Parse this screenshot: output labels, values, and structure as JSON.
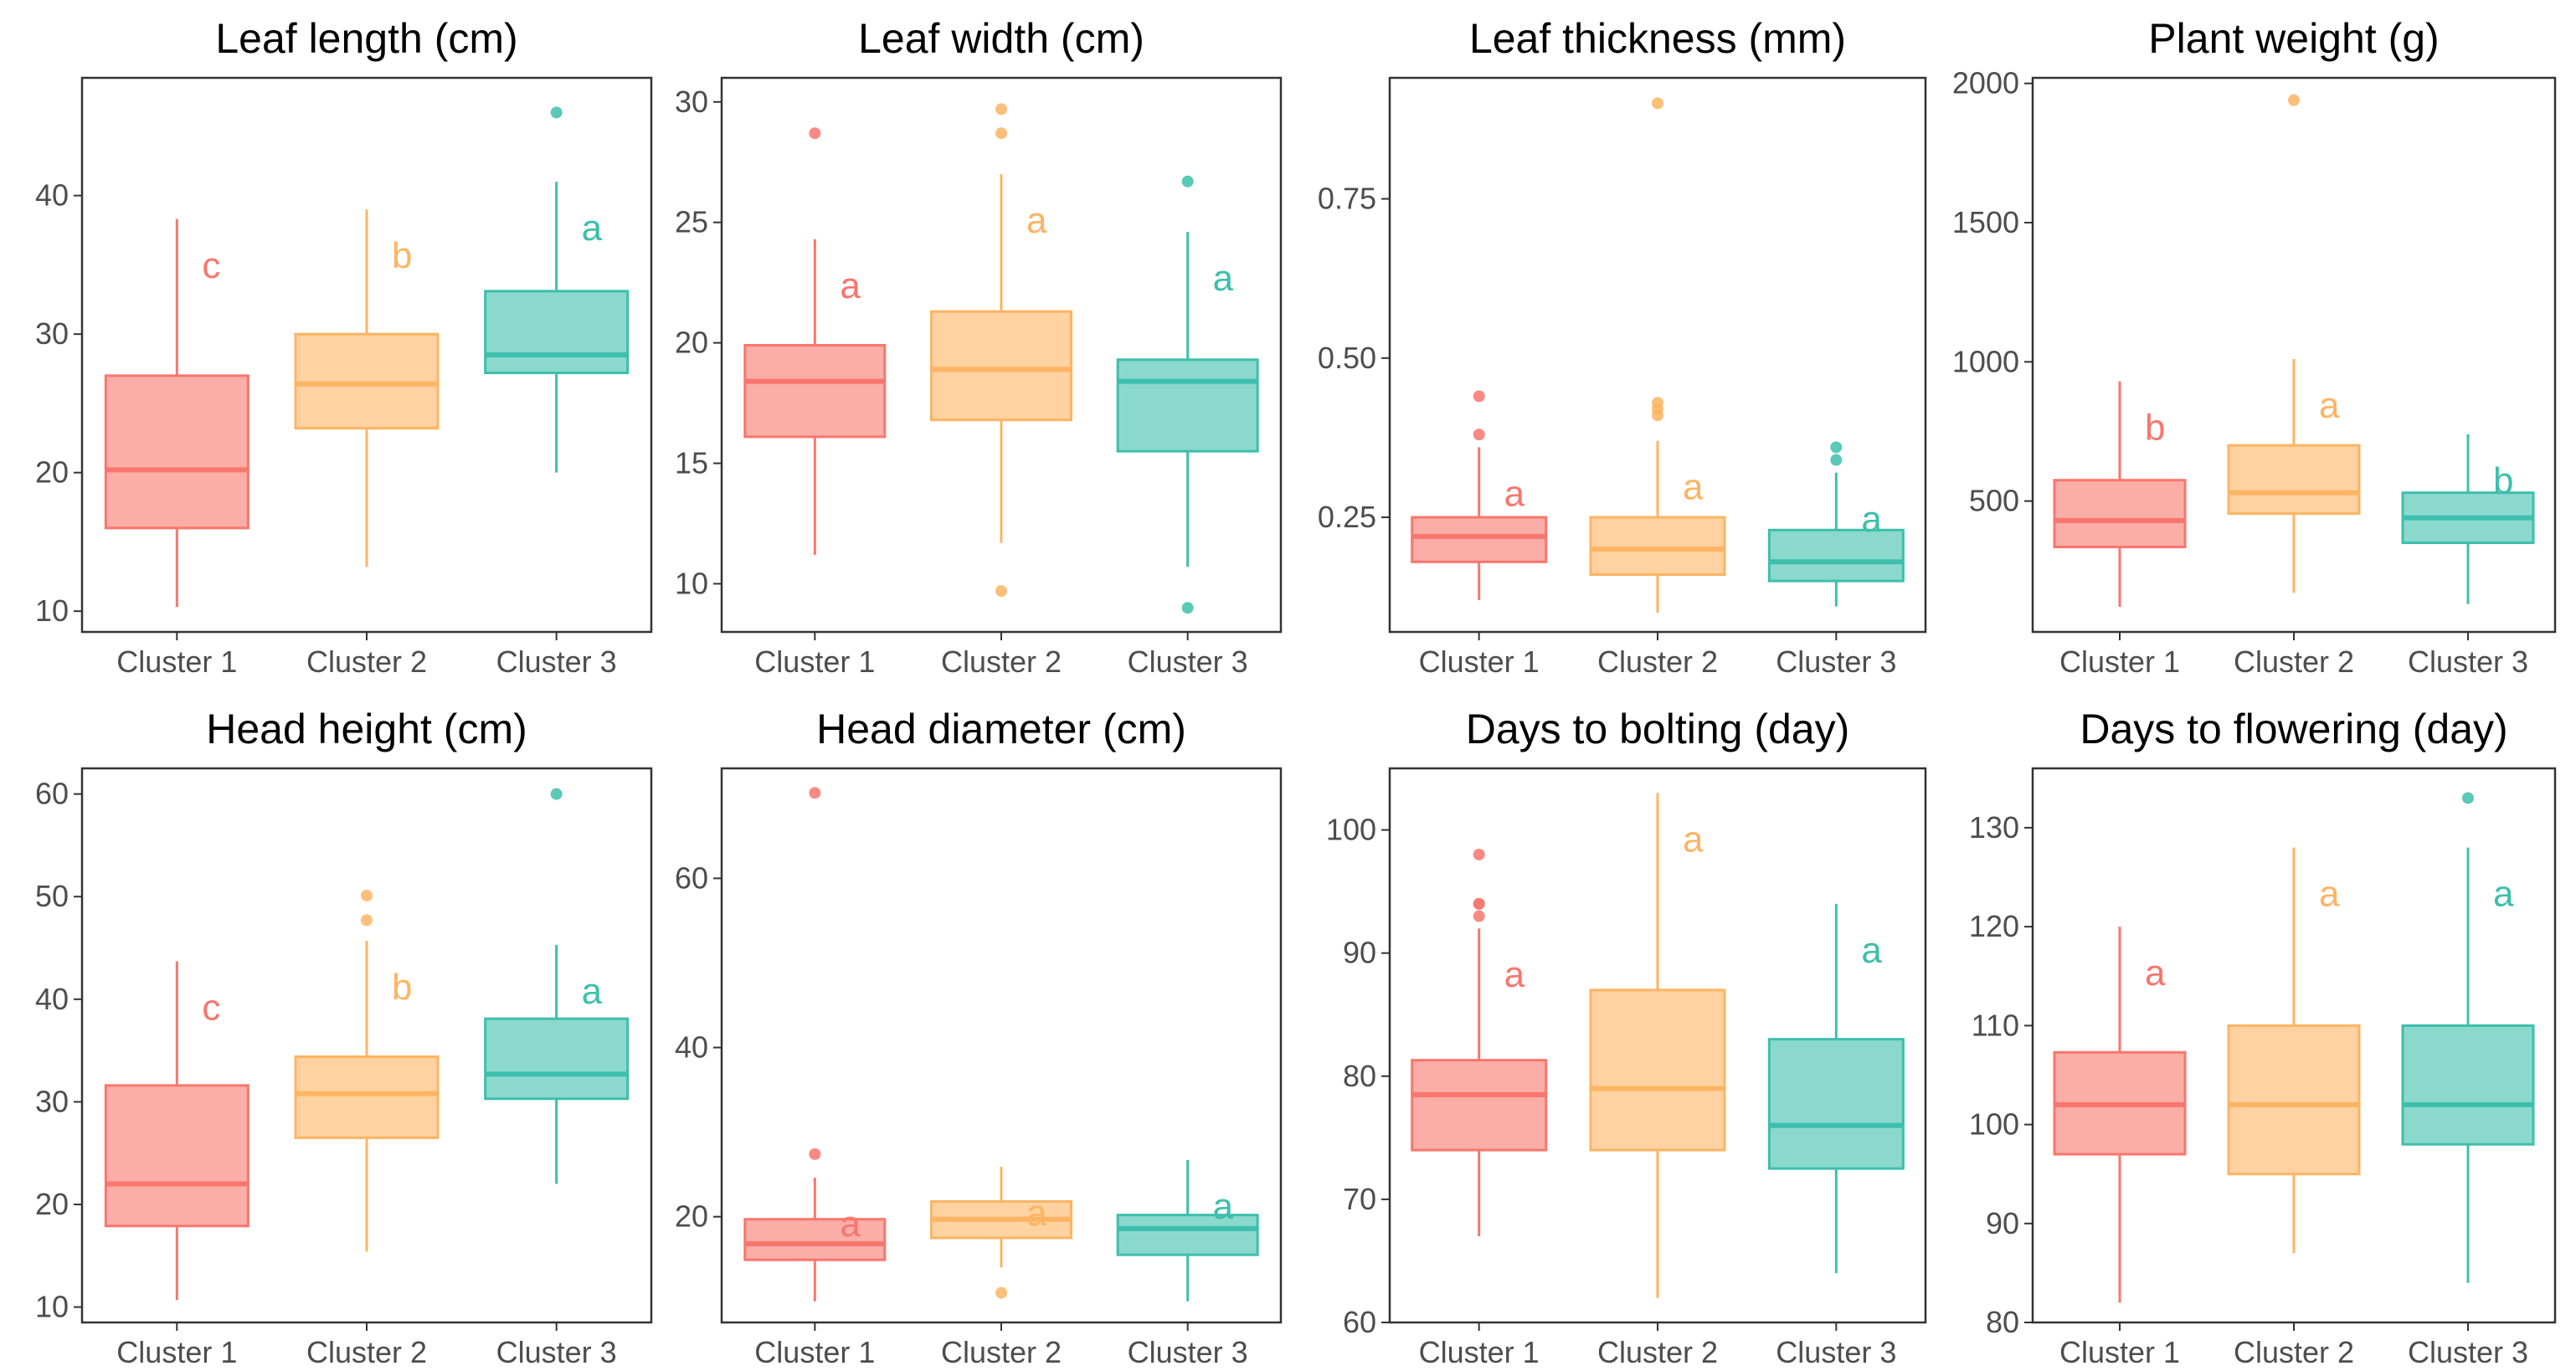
{
  "colors": {
    "cluster1": "#F8766D",
    "cluster2": "#FDB462",
    "cluster3": "#3DBFAC"
  },
  "chart_data": [
    {
      "type": "box",
      "title": "Leaf length (cm)",
      "categories": [
        "Cluster 1",
        "Cluster 2",
        "Cluster 3"
      ],
      "ylim": [
        8.5,
        48.5
      ],
      "yticks": [
        10,
        20,
        30,
        40
      ],
      "tick_labels": [
        "10",
        "20",
        "30",
        "40"
      ],
      "boxes": [
        {
          "category": "Cluster 1",
          "min": 10.3,
          "q1": 16.0,
          "median": 20.2,
          "q3": 27.0,
          "max": 38.3,
          "outliers": [],
          "letter": "c"
        },
        {
          "category": "Cluster 2",
          "min": 13.2,
          "q1": 23.2,
          "median": 26.4,
          "q3": 30.0,
          "max": 39.0,
          "outliers": [],
          "letter": "b"
        },
        {
          "category": "Cluster 3",
          "min": 20.0,
          "q1": 27.2,
          "median": 28.5,
          "q3": 33.1,
          "max": 41.0,
          "outliers": [
            46.0
          ],
          "letter": "a"
        }
      ]
    },
    {
      "type": "box",
      "title": "Leaf width (cm)",
      "categories": [
        "Cluster 1",
        "Cluster 2",
        "Cluster 3"
      ],
      "ylim": [
        8.0,
        31.0
      ],
      "yticks": [
        10,
        15,
        20,
        25,
        30
      ],
      "tick_labels": [
        "10",
        "15",
        "20",
        "25",
        "30"
      ],
      "boxes": [
        {
          "category": "Cluster 1",
          "min": 11.2,
          "q1": 16.1,
          "median": 18.4,
          "q3": 19.9,
          "max": 24.3,
          "outliers": [
            28.7
          ],
          "letter": "a"
        },
        {
          "category": "Cluster 2",
          "min": 11.7,
          "q1": 16.8,
          "median": 18.9,
          "q3": 21.3,
          "max": 27.0,
          "outliers": [
            9.7,
            28.7,
            29.7
          ],
          "letter": "a"
        },
        {
          "category": "Cluster 3",
          "min": 10.7,
          "q1": 15.5,
          "median": 18.4,
          "q3": 19.3,
          "max": 24.6,
          "outliers": [
            9.0,
            26.7
          ],
          "letter": "a"
        }
      ]
    },
    {
      "type": "box",
      "title": "Leaf thickness (mm)",
      "categories": [
        "Cluster 1",
        "Cluster 2",
        "Cluster 3"
      ],
      "ylim": [
        0.07,
        0.94
      ],
      "yticks": [
        0.25,
        0.5,
        0.75
      ],
      "tick_labels": [
        "0.25",
        "0.50",
        "0.75"
      ],
      "boxes": [
        {
          "category": "Cluster 1",
          "min": 0.12,
          "q1": 0.18,
          "median": 0.22,
          "q3": 0.25,
          "max": 0.36,
          "outliers": [
            0.38,
            0.44
          ],
          "letter": "a"
        },
        {
          "category": "Cluster 2",
          "min": 0.1,
          "q1": 0.16,
          "median": 0.2,
          "q3": 0.25,
          "max": 0.37,
          "outliers": [
            0.41,
            0.42,
            0.43,
            0.9
          ],
          "letter": "a"
        },
        {
          "category": "Cluster 3",
          "min": 0.11,
          "q1": 0.15,
          "median": 0.18,
          "q3": 0.23,
          "max": 0.32,
          "outliers": [
            0.34,
            0.36
          ],
          "letter": "a"
        }
      ]
    },
    {
      "type": "box",
      "title": "Plant weight (g)",
      "categories": [
        "Cluster 1",
        "Cluster 2",
        "Cluster 3"
      ],
      "ylim": [
        30,
        2020
      ],
      "yticks": [
        500,
        1000,
        1500,
        2000
      ],
      "tick_labels": [
        "500",
        "1000",
        "1500",
        "2000"
      ],
      "boxes": [
        {
          "category": "Cluster 1",
          "min": 120,
          "q1": 335,
          "median": 430,
          "q3": 575,
          "max": 930,
          "outliers": [],
          "letter": "b"
        },
        {
          "category": "Cluster 2",
          "min": 170,
          "q1": 455,
          "median": 530,
          "q3": 700,
          "max": 1010,
          "outliers": [
            1940
          ],
          "letter": "a"
        },
        {
          "category": "Cluster 3",
          "min": 130,
          "q1": 350,
          "median": 440,
          "q3": 530,
          "max": 740,
          "outliers": [],
          "letter": "b"
        }
      ]
    },
    {
      "type": "box",
      "title": "Head height (cm)",
      "categories": [
        "Cluster 1",
        "Cluster 2",
        "Cluster 3"
      ],
      "ylim": [
        8.5,
        62.5
      ],
      "yticks": [
        10,
        20,
        30,
        40,
        50,
        60
      ],
      "tick_labels": [
        "10",
        "20",
        "30",
        "40",
        "50",
        "60"
      ],
      "boxes": [
        {
          "category": "Cluster 1",
          "min": 10.7,
          "q1": 17.9,
          "median": 22.0,
          "q3": 31.6,
          "max": 43.7,
          "outliers": [],
          "letter": "c"
        },
        {
          "category": "Cluster 2",
          "min": 15.4,
          "q1": 26.5,
          "median": 30.8,
          "q3": 34.4,
          "max": 45.7,
          "outliers": [
            47.7,
            50.1
          ],
          "letter": "b"
        },
        {
          "category": "Cluster 3",
          "min": 22.0,
          "q1": 30.3,
          "median": 32.7,
          "q3": 38.1,
          "max": 45.3,
          "outliers": [
            60.0
          ],
          "letter": "a"
        }
      ]
    },
    {
      "type": "box",
      "title": "Head diameter (cm)",
      "categories": [
        "Cluster 1",
        "Cluster 2",
        "Cluster 3"
      ],
      "ylim": [
        7.5,
        73.0
      ],
      "yticks": [
        20,
        40,
        60
      ],
      "tick_labels": [
        "20",
        "40",
        "60"
      ],
      "boxes": [
        {
          "category": "Cluster 1",
          "min": 10.0,
          "q1": 14.9,
          "median": 16.8,
          "q3": 19.7,
          "max": 24.6,
          "outliers": [
            27.4,
            70.1
          ],
          "letter": "a"
        },
        {
          "category": "Cluster 2",
          "min": 14.0,
          "q1": 17.5,
          "median": 19.7,
          "q3": 21.8,
          "max": 25.9,
          "outliers": [
            11.0
          ],
          "letter": "a"
        },
        {
          "category": "Cluster 3",
          "min": 10.0,
          "q1": 15.5,
          "median": 18.6,
          "q3": 20.2,
          "max": 26.7,
          "outliers": [],
          "letter": "a"
        }
      ]
    },
    {
      "type": "box",
      "title": "Days to bolting (day)",
      "categories": [
        "Cluster 1",
        "Cluster 2",
        "Cluster 3"
      ],
      "ylim": [
        60,
        105
      ],
      "yticks": [
        60,
        70,
        80,
        90,
        100
      ],
      "tick_labels": [
        "60",
        "70",
        "80",
        "90",
        "100"
      ],
      "boxes": [
        {
          "category": "Cluster 1",
          "min": 67,
          "q1": 74,
          "median": 78.5,
          "q3": 81.3,
          "max": 92,
          "outliers": [
            93,
            94,
            94,
            98
          ],
          "letter": "a"
        },
        {
          "category": "Cluster 2",
          "min": 62,
          "q1": 74,
          "median": 79,
          "q3": 87,
          "max": 103,
          "outliers": [],
          "letter": "a"
        },
        {
          "category": "Cluster 3",
          "min": 64,
          "q1": 72.5,
          "median": 76,
          "q3": 83,
          "max": 94,
          "outliers": [],
          "letter": "a"
        }
      ]
    },
    {
      "type": "box",
      "title": "Days to flowering (day)",
      "categories": [
        "Cluster 1",
        "Cluster 2",
        "Cluster 3"
      ],
      "ylim": [
        80,
        136
      ],
      "yticks": [
        80,
        90,
        100,
        110,
        120,
        130
      ],
      "tick_labels": [
        "80",
        "90",
        "100",
        "110",
        "120",
        "130"
      ],
      "boxes": [
        {
          "category": "Cluster 1",
          "min": 82,
          "q1": 97,
          "median": 102,
          "q3": 107.3,
          "max": 120,
          "outliers": [],
          "letter": "a"
        },
        {
          "category": "Cluster 2",
          "min": 87,
          "q1": 95,
          "median": 102,
          "q3": 110,
          "max": 128,
          "outliers": [],
          "letter": "a"
        },
        {
          "category": "Cluster 3",
          "min": 84,
          "q1": 98,
          "median": 102,
          "q3": 110,
          "max": 128,
          "outliers": [
            133
          ],
          "letter": "a"
        }
      ]
    }
  ]
}
